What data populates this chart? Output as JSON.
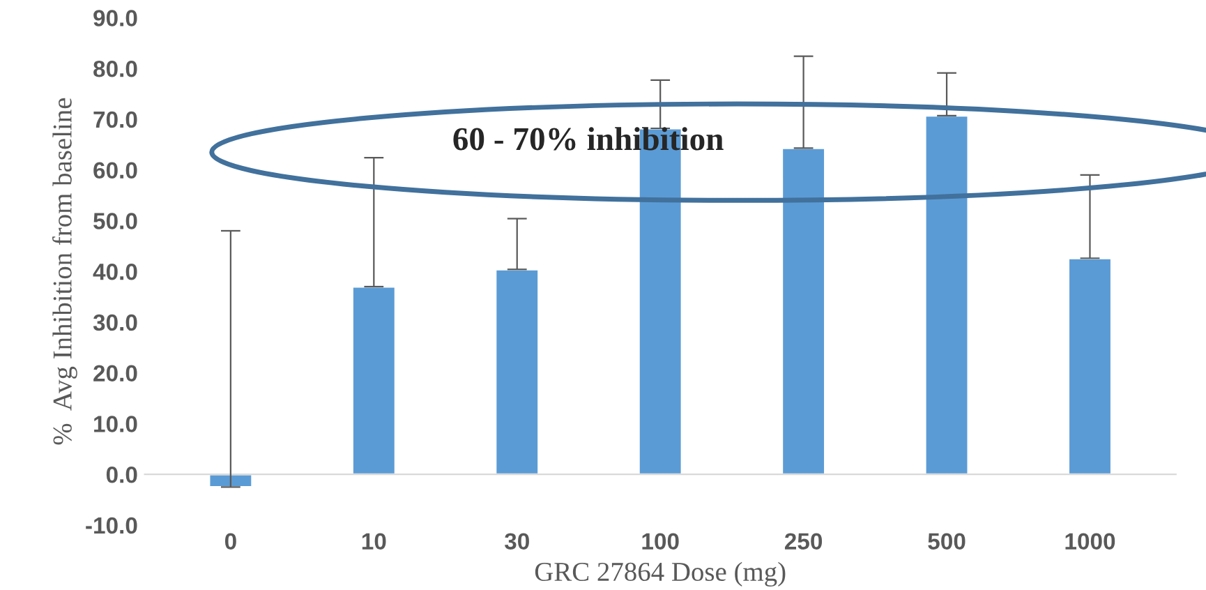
{
  "chart_data": {
    "type": "bar",
    "xlabel": "GRC 27864 Dose (mg)",
    "ylabel": "%  Avg Inhibition from baseline",
    "categories": [
      "0",
      "10",
      "30",
      "100",
      "250",
      "500",
      "1000"
    ],
    "series": [
      {
        "color": "#5b9bd5",
        "values": [
          -2.5,
          37.0,
          40.4,
          68.2,
          64.3,
          70.7,
          42.6
        ],
        "errors": [
          [
            -2.5,
            48.0
          ],
          [
            37.0,
            62.4
          ],
          [
            40.4,
            50.4
          ],
          [
            68.2,
            77.7
          ],
          [
            64.3,
            82.4
          ],
          [
            70.7,
            79.1
          ],
          [
            42.6,
            59.0
          ]
        ]
      }
    ],
    "ylim": [
      -10,
      90
    ],
    "yticks": [
      {
        "value": -10,
        "label": "-10.0"
      },
      {
        "value": 0,
        "label": "0.0"
      },
      {
        "value": 10,
        "label": "10.0"
      },
      {
        "value": 20,
        "label": "20.0"
      },
      {
        "value": 30,
        "label": "30.0"
      },
      {
        "value": 40,
        "label": "40.0"
      },
      {
        "value": 50,
        "label": "50.0"
      },
      {
        "value": 60,
        "label": "60.0"
      },
      {
        "value": 70,
        "label": "70.0"
      },
      {
        "value": 80,
        "label": "80.0"
      },
      {
        "value": 90,
        "label": "90.0"
      }
    ],
    "annotations": [
      "60 - 70% inhibition"
    ],
    "grid": false,
    "legend": false
  }
}
